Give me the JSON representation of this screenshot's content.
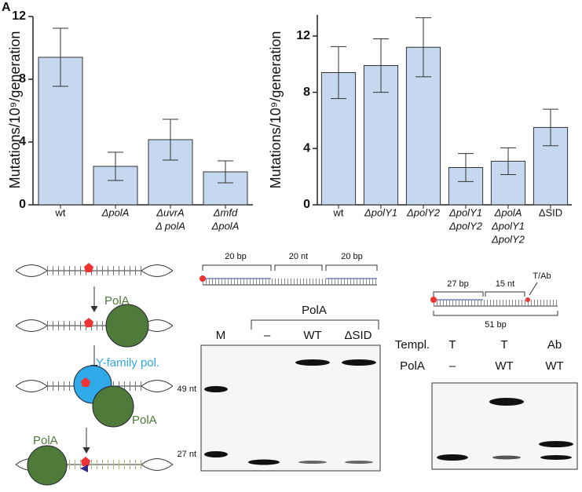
{
  "panel_letter": "A",
  "chart_data": [
    {
      "type": "bar",
      "ylabel": "Mutations/10⁹/generation",
      "categories": [
        [
          "wt"
        ],
        [
          "ΔpolA"
        ],
        [
          "ΔuvrA",
          "Δ polA"
        ],
        [
          "Δmfd",
          "ΔpolA"
        ]
      ],
      "values": [
        9.4,
        2.45,
        4.15,
        2.1
      ],
      "errors": [
        1.85,
        0.9,
        1.3,
        0.7
      ],
      "color": "#c5d8ef",
      "ylim": [
        0,
        12
      ],
      "yticks": [
        0,
        4,
        8,
        12
      ]
    },
    {
      "type": "bar",
      "ylabel": "Mutations/10⁹/generation",
      "categories": [
        [
          "wt"
        ],
        [
          "ΔpolY1"
        ],
        [
          "ΔpolY2"
        ],
        [
          "ΔpolY1",
          "ΔpolY2"
        ],
        [
          "ΔpolA",
          "ΔpolY1",
          "ΔpolY2"
        ],
        [
          "ΔSID"
        ]
      ],
      "values": [
        9.4,
        9.9,
        11.2,
        2.65,
        3.1,
        5.5
      ],
      "errors": [
        1.85,
        1.9,
        2.1,
        1.0,
        0.95,
        1.3
      ],
      "color": "#c5d8ef",
      "ylim": [
        0,
        13.5
      ],
      "yticks": [
        0,
        4,
        8,
        12
      ]
    }
  ],
  "diagram": {
    "labels": [
      "PolA",
      "Y-family pol.",
      "PolA",
      "PolA"
    ]
  },
  "gel_d": {
    "construct": [
      "20 bp",
      "20 nt",
      "20 bp"
    ],
    "header": "PolA",
    "lanes": [
      "M",
      "–",
      "WT",
      "ΔSID"
    ],
    "markers": [
      "49 nt",
      "27 nt"
    ]
  },
  "gel_e": {
    "construct": [
      "27 bp",
      "15 nt",
      "T/Ab",
      "51 bp"
    ],
    "row1_label": "Templ.",
    "row1": [
      "T",
      "T",
      "Ab"
    ],
    "row2_label": "PolA",
    "row2": [
      "–",
      "WT",
      "WT"
    ]
  }
}
